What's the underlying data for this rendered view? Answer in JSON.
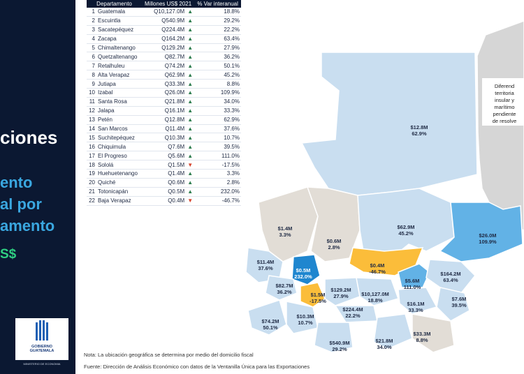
{
  "header": {
    "title": "ciones",
    "subtitle_lines": [
      "ento",
      "al por",
      "amento"
    ],
    "currency": "S$"
  },
  "logo": {
    "line1": "GOBIERNO",
    "line2": "GUATEMALA",
    "ministry": "MINISTERIO DE ECONOMIA"
  },
  "table": {
    "headers": [
      "Departamento",
      "Millones US$ 2021",
      "% Var interanual"
    ],
    "rows": [
      {
        "rank": "1",
        "name": "Guatemala",
        "value": "Q10,127.0M",
        "dir": "up",
        "pct": "18.8%"
      },
      {
        "rank": "2",
        "name": "Escuintla",
        "value": "Q540.9M",
        "dir": "up",
        "pct": "29.2%"
      },
      {
        "rank": "3",
        "name": "Sacatepéquez",
        "value": "Q224.4M",
        "dir": "up",
        "pct": "22.2%"
      },
      {
        "rank": "4",
        "name": "Zacapa",
        "value": "Q164.2M",
        "dir": "up",
        "pct": "63.4%"
      },
      {
        "rank": "5",
        "name": "Chimaltenango",
        "value": "Q129.2M",
        "dir": "up",
        "pct": "27.9%"
      },
      {
        "rank": "6",
        "name": "Quetzaltenango",
        "value": "Q82.7M",
        "dir": "up",
        "pct": "36.2%"
      },
      {
        "rank": "7",
        "name": "Retalhuleu",
        "value": "Q74.2M",
        "dir": "up",
        "pct": "50.1%"
      },
      {
        "rank": "8",
        "name": "Alta Verapaz",
        "value": "Q62.9M",
        "dir": "up",
        "pct": "45.2%"
      },
      {
        "rank": "9",
        "name": "Jutiapa",
        "value": "Q33.3M",
        "dir": "up",
        "pct": "8.8%"
      },
      {
        "rank": "10",
        "name": "Izabal",
        "value": "Q26.0M",
        "dir": "up",
        "pct": "109.9%"
      },
      {
        "rank": "11",
        "name": "Santa Rosa",
        "value": "Q21.8M",
        "dir": "up",
        "pct": "34.0%"
      },
      {
        "rank": "12",
        "name": "Jalapa",
        "value": "Q16.1M",
        "dir": "up",
        "pct": "33.3%"
      },
      {
        "rank": "13",
        "name": "Petén",
        "value": "Q12.8M",
        "dir": "up",
        "pct": "62.9%"
      },
      {
        "rank": "14",
        "name": "San Marcos",
        "value": "Q11.4M",
        "dir": "up",
        "pct": "37.6%"
      },
      {
        "rank": "15",
        "name": "Suchitepéquez",
        "value": "Q10.3M",
        "dir": "up",
        "pct": "10.7%"
      },
      {
        "rank": "16",
        "name": "Chiquimula",
        "value": "Q7.6M",
        "dir": "up",
        "pct": "39.5%"
      },
      {
        "rank": "17",
        "name": "El Progreso",
        "value": "Q5.6M",
        "dir": "up",
        "pct": "111.0%"
      },
      {
        "rank": "18",
        "name": "Sololá",
        "value": "Q1.5M",
        "dir": "down",
        "pct": "-17.5%"
      },
      {
        "rank": "19",
        "name": "Huehuetenango",
        "value": "Q1.4M",
        "dir": "up",
        "pct": "3.3%"
      },
      {
        "rank": "20",
        "name": "Quiché",
        "value": "Q0.6M",
        "dir": "up",
        "pct": "2.8%"
      },
      {
        "rank": "21",
        "name": "Totonicapán",
        "value": "Q0.5M",
        "dir": "up",
        "pct": "232.0%"
      },
      {
        "rank": "22",
        "name": "Baja Verapaz",
        "value": "Q0.4M",
        "dir": "down",
        "pct": "-46.7%"
      }
    ]
  },
  "map_note": {
    "lines": [
      "Diferend",
      "territoria",
      "insular y",
      "marítimo",
      "pendiente",
      "de resolve"
    ]
  },
  "footer": {
    "note": "Nota: La ubicación geográfica se determina por medio del domicilio fiscal",
    "source": "Fuente: Dirección de Análisis Económico con datos de la Ventanilla Única para las Exportaciones"
  },
  "colors": {
    "panel": "#0b1832",
    "up": "#2e7d4f",
    "down": "#d6452f",
    "neutral": "#e2ddd6",
    "light": "#c9def0",
    "mid": "#a9cdec",
    "accent": "#62b2e6",
    "dark": "#1f86cf",
    "yellow": "#fbbd3a",
    "belize": "#d6d6d6"
  },
  "chart_data": {
    "type": "choropleth-map",
    "unit": "Millones US$ 2021",
    "regions": [
      {
        "name": "Petén",
        "value_label": "$12.8M",
        "pct_label": "62.9%",
        "value": 12.8,
        "pct": 62.9,
        "color_class": "light"
      },
      {
        "name": "Huehuetenango",
        "value_label": "$1.4M",
        "pct_label": "3.3%",
        "value": 1.4,
        "pct": 3.3,
        "color_class": "neutral"
      },
      {
        "name": "Quiché",
        "value_label": "$0.6M",
        "pct_label": "2.8%",
        "value": 0.6,
        "pct": 2.8,
        "color_class": "neutral"
      },
      {
        "name": "Alta Verapaz",
        "value_label": "$62.9M",
        "pct_label": "45.2%",
        "value": 62.9,
        "pct": 45.2,
        "color_class": "light"
      },
      {
        "name": "Izabal",
        "value_label": "$26.0M",
        "pct_label": "109.9%",
        "value": 26.0,
        "pct": 109.9,
        "color_class": "accent"
      },
      {
        "name": "San Marcos",
        "value_label": "$11.4M",
        "pct_label": "37.6%",
        "value": 11.4,
        "pct": 37.6,
        "color_class": "light"
      },
      {
        "name": "Totonicapán",
        "value_label": "$0.5M",
        "pct_label": "232.0%",
        "value": 0.5,
        "pct": 232.0,
        "color_class": "dark"
      },
      {
        "name": "Baja Verapaz",
        "value_label": "$0.4M",
        "pct_label": "-46.7%",
        "value": 0.4,
        "pct": -46.7,
        "color_class": "yellow"
      },
      {
        "name": "El Progreso",
        "value_label": "$5.6M",
        "pct_label": "111.0%",
        "value": 5.6,
        "pct": 111.0,
        "color_class": "accent"
      },
      {
        "name": "Zacapa",
        "value_label": "$164.2M",
        "pct_label": "63.4%",
        "value": 164.2,
        "pct": 63.4,
        "color_class": "light"
      },
      {
        "name": "Quetzaltenango",
        "value_label": "$82.7M",
        "pct_label": "36.2%",
        "value": 82.7,
        "pct": 36.2,
        "color_class": "light"
      },
      {
        "name": "Sololá",
        "value_label": "$1.5M",
        "pct_label": "-17.5%",
        "value": 1.5,
        "pct": -17.5,
        "color_class": "yellow"
      },
      {
        "name": "Chimaltenango",
        "value_label": "$129.2M",
        "pct_label": "27.9%",
        "value": 129.2,
        "pct": 27.9,
        "color_class": "light"
      },
      {
        "name": "Guatemala",
        "value_label": "$10,127.0M",
        "pct_label": "18.8%",
        "value": 10127.0,
        "pct": 18.8,
        "color_class": "light"
      },
      {
        "name": "Jalapa",
        "value_label": "$16.1M",
        "pct_label": "33.3%",
        "value": 16.1,
        "pct": 33.3,
        "color_class": "light"
      },
      {
        "name": "Chiquimula",
        "value_label": "$7.6M",
        "pct_label": "39.5%",
        "value": 7.6,
        "pct": 39.5,
        "color_class": "light"
      },
      {
        "name": "Retalhuleu",
        "value_label": "$74.2M",
        "pct_label": "50.1%",
        "value": 74.2,
        "pct": 50.1,
        "color_class": "light"
      },
      {
        "name": "Suchitepéquez",
        "value_label": "$10.3M",
        "pct_label": "10.7%",
        "value": 10.3,
        "pct": 10.7,
        "color_class": "light"
      },
      {
        "name": "Sacatepéquez",
        "value_label": "$224.4M",
        "pct_label": "22.2%",
        "value": 224.4,
        "pct": 22.2,
        "color_class": "light"
      },
      {
        "name": "Escuintla",
        "value_label": "$540.9M",
        "pct_label": "29.2%",
        "value": 540.9,
        "pct": 29.2,
        "color_class": "light"
      },
      {
        "name": "Santa Rosa",
        "value_label": "$21.8M",
        "pct_label": "34.0%",
        "value": 21.8,
        "pct": 34.0,
        "color_class": "light"
      },
      {
        "name": "Jutiapa",
        "value_label": "$33.3M",
        "pct_label": "8.8%",
        "value": 33.3,
        "pct": 8.8,
        "color_class": "neutral"
      }
    ]
  }
}
